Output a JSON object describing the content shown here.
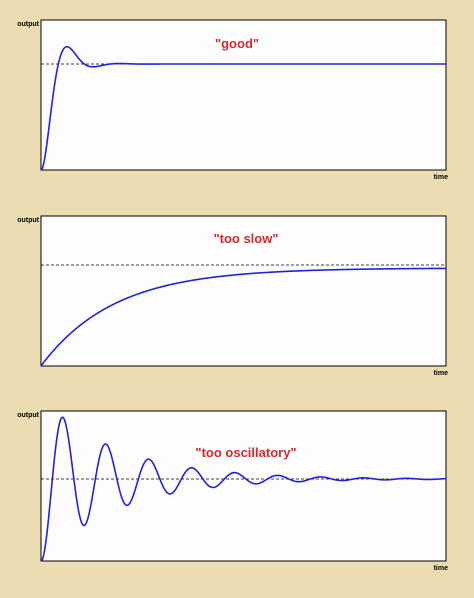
{
  "panels": [
    {
      "y_label": "output",
      "x_label": "time",
      "caption": "\"good\""
    },
    {
      "y_label": "output",
      "x_label": "time",
      "caption": "\"too slow\""
    },
    {
      "y_label": "output",
      "x_label": "time",
      "caption": "\"too oscillatory\""
    }
  ]
}
